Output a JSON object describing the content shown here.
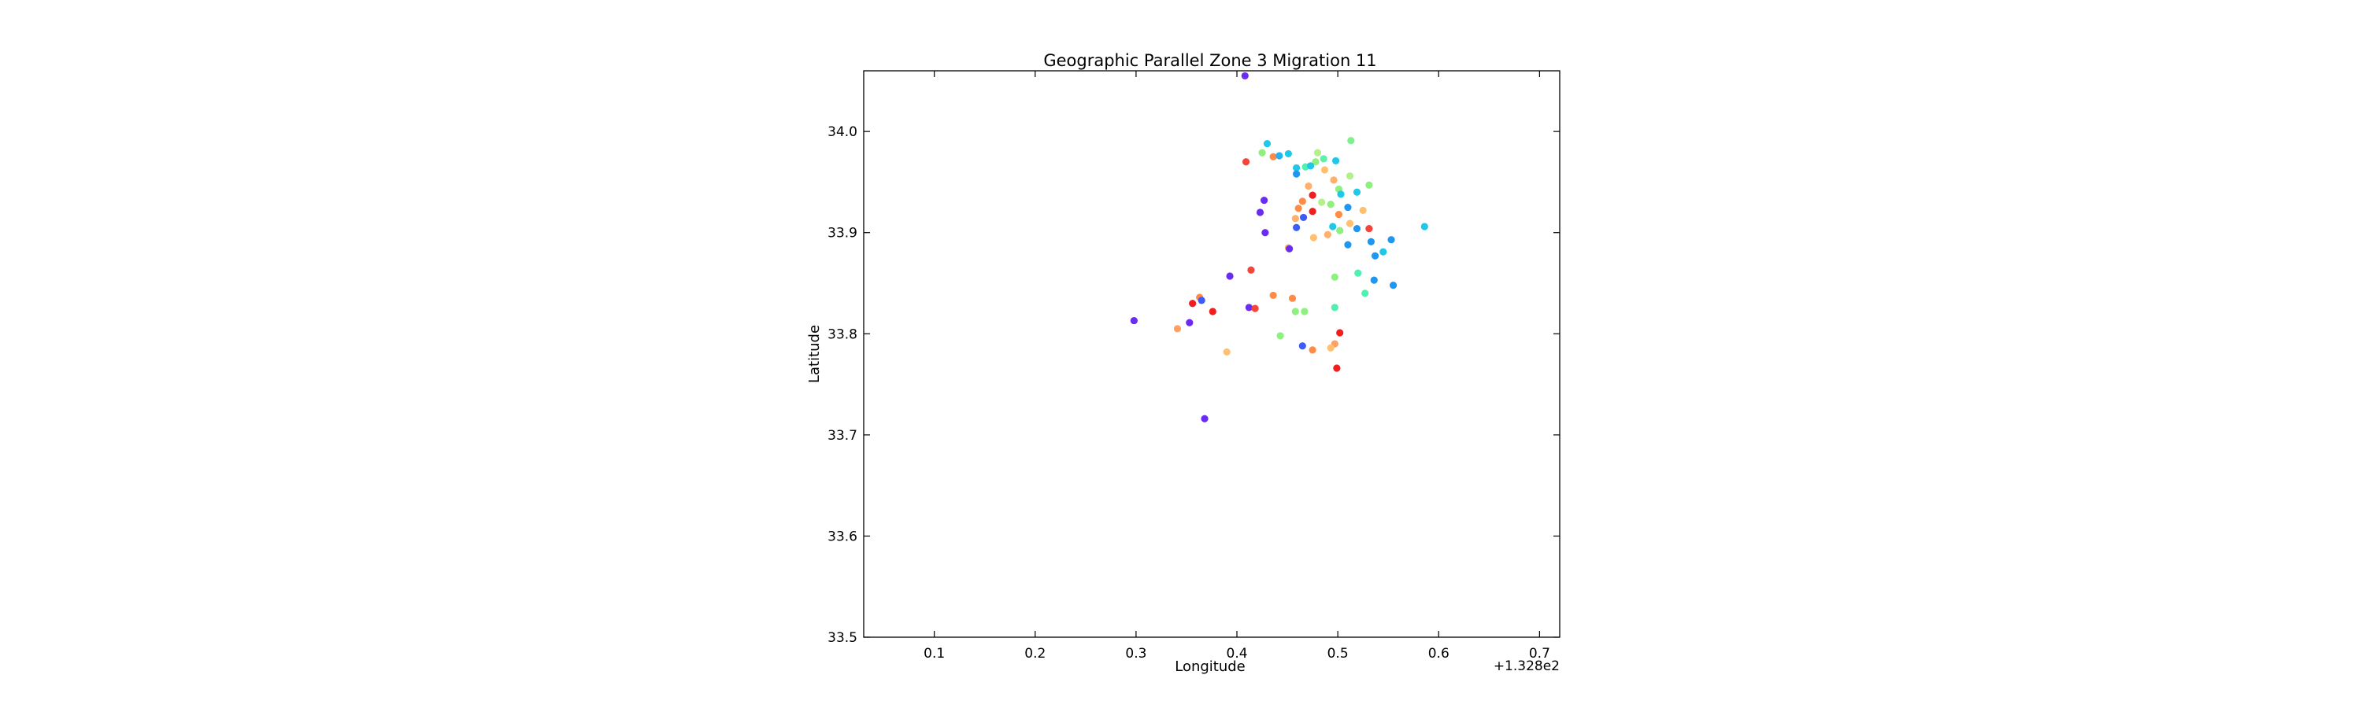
{
  "chart_data": {
    "type": "scatter",
    "title": "Geographic Parallel Zone 3 Migration 11",
    "xlabel": "Longitude",
    "ylabel": "Latitude",
    "x_offset_label": "+1.328e2",
    "xlim": [
      0.03,
      0.72
    ],
    "ylim": [
      33.5,
      34.06
    ],
    "xticks": [
      0.1,
      0.2,
      0.3,
      0.4,
      0.5,
      0.6,
      0.7
    ],
    "xtick_labels": [
      "0.1",
      "0.2",
      "0.3",
      "0.4",
      "0.5",
      "0.6",
      "0.7"
    ],
    "yticks": [
      33.5,
      33.6,
      33.7,
      33.8,
      33.9,
      34.0
    ],
    "ytick_labels": [
      "33.5",
      "33.6",
      "33.7",
      "33.8",
      "33.9",
      "34.0"
    ],
    "grid": false,
    "legend": "none",
    "colormap": "rainbow",
    "points": [
      {
        "x": 0.408,
        "y": 34.055,
        "color": "#6a2cf2"
      },
      {
        "x": 0.513,
        "y": 33.991,
        "color": "#80f08c"
      },
      {
        "x": 0.43,
        "y": 33.988,
        "color": "#1ec8e6"
      },
      {
        "x": 0.425,
        "y": 33.979,
        "color": "#8ef07e"
      },
      {
        "x": 0.436,
        "y": 33.975,
        "color": "#ff8c46"
      },
      {
        "x": 0.442,
        "y": 33.976,
        "color": "#23b4ee"
      },
      {
        "x": 0.451,
        "y": 33.978,
        "color": "#1ec8e6"
      },
      {
        "x": 0.48,
        "y": 33.979,
        "color": "#b4f08a"
      },
      {
        "x": 0.486,
        "y": 33.973,
        "color": "#5cf0a8"
      },
      {
        "x": 0.498,
        "y": 33.971,
        "color": "#1ec8e6"
      },
      {
        "x": 0.409,
        "y": 33.97,
        "color": "#f5443a"
      },
      {
        "x": 0.478,
        "y": 33.97,
        "color": "#8ef07e"
      },
      {
        "x": 0.468,
        "y": 33.965,
        "color": "#50f0b0"
      },
      {
        "x": 0.459,
        "y": 33.964,
        "color": "#1ec8e6"
      },
      {
        "x": 0.473,
        "y": 33.966,
        "color": "#1ec8e6"
      },
      {
        "x": 0.487,
        "y": 33.962,
        "color": "#ffc070"
      },
      {
        "x": 0.459,
        "y": 33.958,
        "color": "#1f96f0"
      },
      {
        "x": 0.512,
        "y": 33.956,
        "color": "#b4f08a"
      },
      {
        "x": 0.496,
        "y": 33.952,
        "color": "#ffb06a"
      },
      {
        "x": 0.531,
        "y": 33.947,
        "color": "#8ef07e"
      },
      {
        "x": 0.471,
        "y": 33.946,
        "color": "#ffb06a"
      },
      {
        "x": 0.501,
        "y": 33.943,
        "color": "#8ef07e"
      },
      {
        "x": 0.503,
        "y": 33.938,
        "color": "#1ec8e6"
      },
      {
        "x": 0.519,
        "y": 33.94,
        "color": "#1ec8e6"
      },
      {
        "x": 0.475,
        "y": 33.937,
        "color": "#f01e1e"
      },
      {
        "x": 0.427,
        "y": 33.932,
        "color": "#6a2cf2"
      },
      {
        "x": 0.465,
        "y": 33.931,
        "color": "#ff8c46"
      },
      {
        "x": 0.484,
        "y": 33.93,
        "color": "#b4f08a"
      },
      {
        "x": 0.493,
        "y": 33.928,
        "color": "#8ef07e"
      },
      {
        "x": 0.461,
        "y": 33.924,
        "color": "#ff8c46"
      },
      {
        "x": 0.51,
        "y": 33.925,
        "color": "#1f96f0"
      },
      {
        "x": 0.525,
        "y": 33.922,
        "color": "#ffc070"
      },
      {
        "x": 0.475,
        "y": 33.921,
        "color": "#f01e1e"
      },
      {
        "x": 0.423,
        "y": 33.92,
        "color": "#6a2cf2"
      },
      {
        "x": 0.501,
        "y": 33.918,
        "color": "#ff8c46"
      },
      {
        "x": 0.466,
        "y": 33.915,
        "color": "#3c5cf5"
      },
      {
        "x": 0.458,
        "y": 33.914,
        "color": "#ffb06a"
      },
      {
        "x": 0.512,
        "y": 33.909,
        "color": "#ffc070"
      },
      {
        "x": 0.586,
        "y": 33.906,
        "color": "#1ec8e6"
      },
      {
        "x": 0.495,
        "y": 33.906,
        "color": "#1ec8e6"
      },
      {
        "x": 0.459,
        "y": 33.905,
        "color": "#3c5cf5"
      },
      {
        "x": 0.519,
        "y": 33.904,
        "color": "#1f96f0"
      },
      {
        "x": 0.531,
        "y": 33.904,
        "color": "#f5443a"
      },
      {
        "x": 0.502,
        "y": 33.902,
        "color": "#8ef07e"
      },
      {
        "x": 0.428,
        "y": 33.9,
        "color": "#6a2cf2"
      },
      {
        "x": 0.49,
        "y": 33.898,
        "color": "#ffb06a"
      },
      {
        "x": 0.476,
        "y": 33.895,
        "color": "#ffc070"
      },
      {
        "x": 0.553,
        "y": 33.893,
        "color": "#1f96f0"
      },
      {
        "x": 0.533,
        "y": 33.891,
        "color": "#1f96f0"
      },
      {
        "x": 0.51,
        "y": 33.888,
        "color": "#1f96f0"
      },
      {
        "x": 0.451,
        "y": 33.885,
        "color": "#ffb06a"
      },
      {
        "x": 0.452,
        "y": 33.884,
        "color": "#6a2cf2"
      },
      {
        "x": 0.545,
        "y": 33.881,
        "color": "#1ec8e6"
      },
      {
        "x": 0.537,
        "y": 33.877,
        "color": "#1f96f0"
      },
      {
        "x": 0.414,
        "y": 33.863,
        "color": "#f5443a"
      },
      {
        "x": 0.52,
        "y": 33.86,
        "color": "#50f0b0"
      },
      {
        "x": 0.393,
        "y": 33.857,
        "color": "#6a2cf2"
      },
      {
        "x": 0.497,
        "y": 33.856,
        "color": "#8ef07e"
      },
      {
        "x": 0.536,
        "y": 33.853,
        "color": "#1f96f0"
      },
      {
        "x": 0.555,
        "y": 33.848,
        "color": "#1f96f0"
      },
      {
        "x": 0.527,
        "y": 33.84,
        "color": "#50f0b0"
      },
      {
        "x": 0.436,
        "y": 33.838,
        "color": "#ff8c46"
      },
      {
        "x": 0.455,
        "y": 33.835,
        "color": "#ff8c46"
      },
      {
        "x": 0.363,
        "y": 33.836,
        "color": "#ff8c46"
      },
      {
        "x": 0.365,
        "y": 33.833,
        "color": "#3c5cf5"
      },
      {
        "x": 0.356,
        "y": 33.83,
        "color": "#f01e1e"
      },
      {
        "x": 0.497,
        "y": 33.826,
        "color": "#50f0b0"
      },
      {
        "x": 0.412,
        "y": 33.826,
        "color": "#6a2cf2"
      },
      {
        "x": 0.418,
        "y": 33.825,
        "color": "#f5443a"
      },
      {
        "x": 0.376,
        "y": 33.822,
        "color": "#f01e1e"
      },
      {
        "x": 0.458,
        "y": 33.822,
        "color": "#8ef07e"
      },
      {
        "x": 0.467,
        "y": 33.822,
        "color": "#8ef07e"
      },
      {
        "x": 0.298,
        "y": 33.813,
        "color": "#6a2cf2"
      },
      {
        "x": 0.353,
        "y": 33.811,
        "color": "#6a2cf2"
      },
      {
        "x": 0.341,
        "y": 33.805,
        "color": "#ffa060"
      },
      {
        "x": 0.502,
        "y": 33.801,
        "color": "#f01e1e"
      },
      {
        "x": 0.443,
        "y": 33.798,
        "color": "#8ef07e"
      },
      {
        "x": 0.497,
        "y": 33.79,
        "color": "#ffa060"
      },
      {
        "x": 0.465,
        "y": 33.788,
        "color": "#3c5cf5"
      },
      {
        "x": 0.493,
        "y": 33.786,
        "color": "#ffc070"
      },
      {
        "x": 0.475,
        "y": 33.784,
        "color": "#ff8c46"
      },
      {
        "x": 0.39,
        "y": 33.782,
        "color": "#ffc070"
      },
      {
        "x": 0.499,
        "y": 33.766,
        "color": "#f01e1e"
      },
      {
        "x": 0.368,
        "y": 33.716,
        "color": "#6a2cf2"
      }
    ]
  }
}
